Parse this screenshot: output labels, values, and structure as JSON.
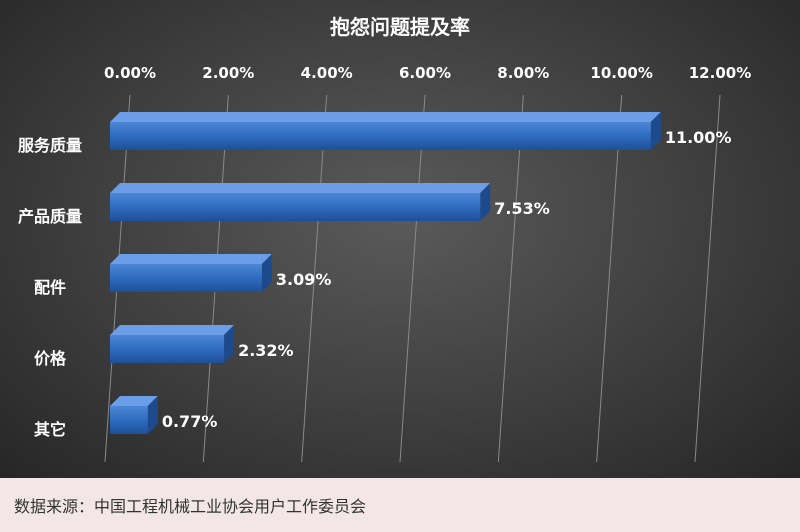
{
  "chart_data": {
    "type": "bar",
    "orientation": "horizontal",
    "title": "抱怨问题提及率",
    "categories": [
      "服务质量",
      "产品质量",
      "配件",
      "价格",
      "其它"
    ],
    "values": [
      11.0,
      7.53,
      3.09,
      2.32,
      0.77
    ],
    "value_labels": [
      "11.00%",
      "7.53%",
      "3.09%",
      "2.32%",
      "0.77%"
    ],
    "xlim": [
      0,
      12
    ],
    "x_ticks": [
      0,
      2,
      4,
      6,
      8,
      10,
      12
    ],
    "x_tick_labels": [
      "0.00%",
      "2.00%",
      "4.00%",
      "6.00%",
      "8.00%",
      "10.00%",
      "12.00%"
    ],
    "x_axis_position": "top",
    "grid": true,
    "bar_color": "#2f6bbf"
  },
  "footer": {
    "source_text": "数据来源：中国工程机械工业协会用户工作委员会"
  }
}
